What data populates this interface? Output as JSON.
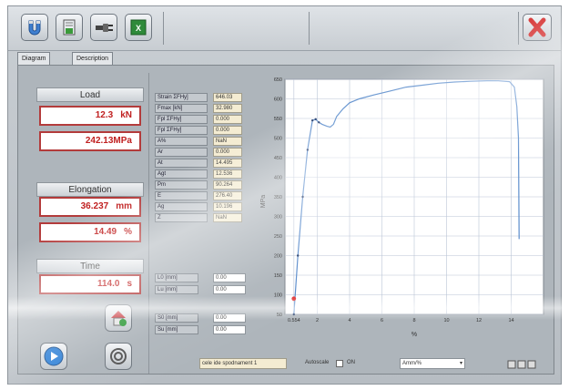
{
  "tabs": [
    "Diagram",
    "Description"
  ],
  "load": {
    "label": "Load",
    "force_value": "12.3",
    "force_unit": "kN",
    "stress_value": "242.13MPa"
  },
  "elongation": {
    "label": "Elongation",
    "mm_value": "36.237",
    "mm_unit": "mm",
    "pct_value": "14.49",
    "pct_unit": "%"
  },
  "time": {
    "label": "Time",
    "value": "114.0",
    "unit": "s"
  },
  "params": [
    {
      "name": "Strain ΣFHy]",
      "value": "646.03"
    },
    {
      "name": "Fmax [kN]",
      "value": "32.980"
    },
    {
      "name": "Fpl ΣFHy]",
      "value": "0.000"
    },
    {
      "name": "Fpl ΣFHy]",
      "value": "0.000"
    },
    {
      "name": "A%",
      "value": "NaN"
    },
    {
      "name": "Ar",
      "value": "0.000"
    },
    {
      "name": "At",
      "value": "14.495"
    },
    {
      "name": "Agt",
      "value": "12.536"
    },
    {
      "name": "Pm",
      "value": "90.264"
    },
    {
      "name": "E",
      "value": "276.40"
    },
    {
      "name": "Ag",
      "value": "10.196"
    },
    {
      "name": "Z",
      "value": "NaN"
    }
  ],
  "geometry_params": [
    {
      "name": "L0 [mm]",
      "value": "0.00"
    },
    {
      "name": "Lu [mm]",
      "value": "0.00"
    },
    {
      "name": "S0 [mm]",
      "value": "0.00"
    },
    {
      "name": "Su [mm]",
      "value": "0.00"
    }
  ],
  "status": {
    "file": "cele ide spodnament 1",
    "autoscale_label": "Autoscale",
    "autoscale_state": "ON",
    "units": "Amm/%"
  },
  "chart_data": {
    "type": "line",
    "xlabel": "%",
    "ylabel": "MPa",
    "xlim": [
      0,
      16
    ],
    "ylim": [
      50,
      650
    ],
    "x_ticks": [
      "0.554",
      "2",
      "4",
      "6",
      "8",
      "10",
      "12",
      "14"
    ],
    "y_ticks": [
      "50",
      "100",
      "150",
      "200",
      "250",
      "300",
      "350",
      "400",
      "450",
      "500",
      "550",
      "600",
      "650"
    ],
    "grid": true,
    "line_color": "#5a8ccc",
    "series": [
      {
        "x": [
          0.55,
          0.8,
          1.1,
          1.4,
          1.7,
          1.9,
          2.1,
          2.3,
          2.6,
          2.8,
          3.0,
          3.2,
          3.6,
          4.0,
          4.6,
          5.5,
          6.5,
          7.5,
          8.5,
          9.5,
          10.5,
          11.5,
          12.5,
          13.2,
          13.9,
          14.2,
          14.35,
          14.45,
          14.49
        ],
        "y": [
          50,
          200,
          350,
          470,
          545,
          548,
          540,
          535,
          530,
          528,
          535,
          555,
          575,
          590,
          600,
          610,
          620,
          630,
          635,
          640,
          643,
          645,
          646,
          646,
          644,
          630,
          580,
          500,
          242
        ]
      }
    ],
    "markers": [
      {
        "x": 0.55,
        "y": 90,
        "color": "#e03030"
      }
    ]
  }
}
